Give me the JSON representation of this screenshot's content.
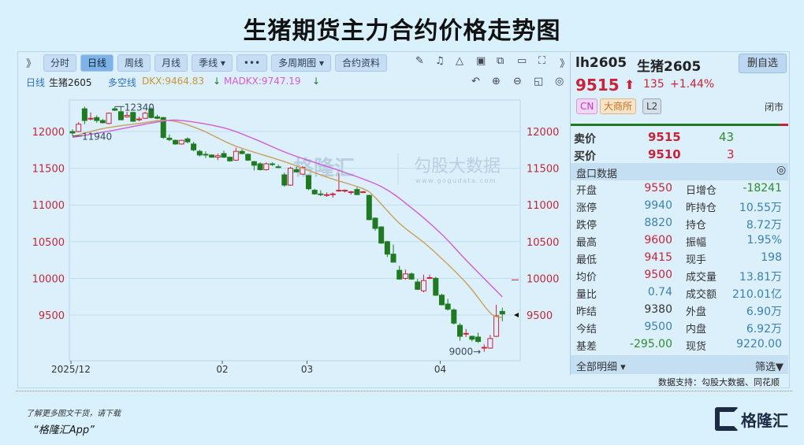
{
  "title": "生猪期货主力合约价格走势图",
  "toolbar": {
    "expand": "》",
    "buttons": [
      "分时",
      "日线",
      "周线",
      "月线",
      "季线 ▾",
      "•••",
      "多周期图 ▾",
      "合约资料"
    ],
    "active": "日线",
    "icons": [
      "pen-icon",
      "bell-icon",
      "alert-icon",
      "clipboard-icon",
      "copy-icon",
      "screen-icon",
      "fullscreen-icon",
      "more-icon"
    ],
    "expand_right": "》"
  },
  "legend": {
    "period": "日线",
    "name": "生猪2605",
    "indicator": "多空线",
    "dkx": "DKX:9464.83",
    "dkx_arrow": "↓",
    "madkx": "MADKX:9747.19",
    "madkx_arrow": "↓",
    "icons": [
      "undo-icon",
      "zoom-in-icon",
      "zoom-out-icon",
      "layout-icon",
      "settings-icon"
    ],
    "colors": {
      "dkx": "#c9a05a",
      "madkx": "#d35bd6"
    }
  },
  "quote": {
    "code": "lh2605",
    "name": "生猪2605",
    "remove_button": "删自选",
    "price": "9515",
    "arrow": "⬆",
    "change": "135",
    "change_pct": "+1.44%",
    "badges": [
      "CN",
      "大商所",
      "L2"
    ],
    "status": "闭市",
    "ask_label": "卖价",
    "ask": "9515",
    "ask_vol": "43",
    "bid_label": "买价",
    "bid": "9510",
    "bid_vol": "3"
  },
  "book": {
    "header": "盘口数据",
    "rows": [
      {
        "l1": "开盘",
        "v1": "9550",
        "c1": "red",
        "l2": "日增仓",
        "v2": "-18241",
        "c2": "grn"
      },
      {
        "l1": "涨停",
        "v1": "9940",
        "c1": "blu",
        "l2": "昨持仓",
        "v2": "10.55万",
        "c2": "blu"
      },
      {
        "l1": "跌停",
        "v1": "8820",
        "c1": "blu",
        "l2": "持仓",
        "v2": "8.72万",
        "c2": "blu"
      },
      {
        "l1": "最高",
        "v1": "9600",
        "c1": "red",
        "l2": "振幅",
        "v2": "1.95%",
        "c2": "blu"
      },
      {
        "l1": "最低",
        "v1": "9415",
        "c1": "red",
        "l2": "现手",
        "v2": "198",
        "c2": "blu"
      },
      {
        "l1": "均价",
        "v1": "9500",
        "c1": "red",
        "l2": "成交量",
        "v2": "13.81万",
        "c2": "blu"
      },
      {
        "l1": "量比",
        "v1": "0.74",
        "c1": "blu",
        "l2": "成交额",
        "v2": "210.01亿",
        "c2": "blu"
      },
      {
        "l1": "昨结",
        "v1": "9380",
        "c1": "dk",
        "l2": "外盘",
        "v2": "6.90万",
        "c2": "blu"
      },
      {
        "l1": "今结",
        "v1": "9500",
        "c1": "blu",
        "l2": "内盘",
        "v2": "6.92万",
        "c2": "blu"
      },
      {
        "l1": "基差",
        "v1": "-295.00",
        "c1": "grn",
        "l2": "现货",
        "v2": "9220.00",
        "c2": "blu"
      }
    ],
    "footer_left": "全部明细 ▾",
    "footer_right": "筛选▼",
    "source": "数据支持：勾股大数据、同花顺"
  },
  "watermark": {
    "brand": "格隆汇",
    "partner": "勾股大数据",
    "url": "www.gogudata.com"
  },
  "footer": {
    "line1": "了解更多图文干货，请下载",
    "line2": "“格隆汇App”",
    "logo": "格隆汇"
  },
  "colors": {
    "up": "#c9233a",
    "down": "#1f7a22",
    "bg": "#d8f1fd"
  },
  "chart_data": {
    "type": "candlestick",
    "yticks": [
      12000,
      11500,
      11000,
      10500,
      10000,
      9500
    ],
    "ylim": [
      8800,
      12450
    ],
    "xticks": [
      {
        "label": "2025/12",
        "index": 0
      },
      {
        "label": "02",
        "index": 25
      },
      {
        "label": "03",
        "index": 39
      },
      {
        "label": "04",
        "index": 61
      }
    ],
    "annotations": [
      {
        "text": "12340",
        "index": 7,
        "value": 12340
      },
      {
        "text": "11940",
        "index": 0,
        "value": 11940
      },
      {
        "text": "9000→",
        "index": 68,
        "value": 9000
      }
    ],
    "ohlc": [
      [
        12000,
        12030,
        11940,
        11980
      ],
      [
        12000,
        12130,
        11990,
        12100
      ],
      [
        12310,
        12340,
        12100,
        12150
      ],
      [
        12170,
        12260,
        12150,
        12180
      ],
      [
        12190,
        12220,
        12120,
        12150
      ],
      [
        12150,
        12170,
        12110,
        12120
      ],
      [
        12110,
        12260,
        12100,
        12250
      ],
      [
        12310,
        12340,
        12280,
        12290
      ],
      [
        12270,
        12340,
        12160,
        12160
      ],
      [
        12200,
        12270,
        12190,
        12220
      ],
      [
        12260,
        12270,
        12130,
        12140
      ],
      [
        12160,
        12200,
        12140,
        12170
      ],
      [
        12180,
        12270,
        12170,
        12250
      ],
      [
        12310,
        12330,
        12180,
        12190
      ],
      [
        12200,
        12230,
        12170,
        12180
      ],
      [
        12190,
        12200,
        11900,
        11920
      ],
      [
        11910,
        11960,
        11870,
        11890
      ],
      [
        11880,
        11890,
        11820,
        11830
      ],
      [
        11830,
        11890,
        11820,
        11880
      ],
      [
        11900,
        11920,
        11840,
        11860
      ],
      [
        11830,
        11860,
        11730,
        11750
      ],
      [
        11730,
        11750,
        11660,
        11680
      ],
      [
        11690,
        11730,
        11640,
        11680
      ],
      [
        11680,
        11690,
        11650,
        11650
      ],
      [
        11650,
        11700,
        11610,
        11670
      ],
      [
        11700,
        11740,
        11640,
        11650
      ],
      [
        11650,
        11660,
        11590,
        11600
      ],
      [
        11610,
        11780,
        11600,
        11730
      ],
      [
        11730,
        11760,
        11690,
        11700
      ],
      [
        11690,
        11700,
        11600,
        11610
      ],
      [
        11590,
        11600,
        11470,
        11540
      ],
      [
        11560,
        11580,
        11470,
        11480
      ],
      [
        11480,
        11580,
        11470,
        11560
      ],
      [
        11560,
        11580,
        11530,
        11550
      ],
      [
        11520,
        11550,
        11500,
        11510
      ],
      [
        11410,
        11440,
        11250,
        11270
      ],
      [
        11270,
        11520,
        11260,
        11500
      ],
      [
        11480,
        11520,
        11440,
        11450
      ],
      [
        11420,
        11530,
        11410,
        11510
      ],
      [
        11400,
        11410,
        11200,
        11220
      ],
      [
        11200,
        11220,
        11140,
        11150
      ],
      [
        11150,
        11200,
        11120,
        11140
      ],
      [
        11130,
        11170,
        11110,
        11140
      ],
      [
        11140,
        11170,
        11100,
        11150
      ],
      [
        11190,
        11430,
        11180,
        11200
      ],
      [
        11190,
        11210,
        11170,
        11200
      ],
      [
        11170,
        11190,
        11140,
        11180
      ],
      [
        11210,
        11240,
        11140,
        11140
      ],
      [
        11170,
        11190,
        11160,
        11180
      ],
      [
        11130,
        11140,
        10790,
        10800
      ],
      [
        10820,
        10830,
        10650,
        10680
      ],
      [
        10700,
        10710,
        10470,
        10480
      ],
      [
        10500,
        10510,
        10290,
        10330
      ],
      [
        10330,
        10460,
        10220,
        10220
      ],
      [
        10110,
        10170,
        9980,
        9990
      ],
      [
        10000,
        10120,
        9980,
        10060
      ],
      [
        10060,
        10080,
        9980,
        9990
      ],
      [
        9950,
        9990,
        9840,
        9850
      ],
      [
        9830,
        10050,
        9810,
        9970
      ],
      [
        10000,
        10050,
        9990,
        10010
      ],
      [
        10000,
        10020,
        9760,
        9770
      ],
      [
        9770,
        9790,
        9630,
        9640
      ],
      [
        9650,
        9720,
        9560,
        9580
      ],
      [
        9570,
        9590,
        9370,
        9390
      ],
      [
        9360,
        9390,
        9150,
        9210
      ],
      [
        9240,
        9310,
        9200,
        9250
      ],
      [
        9210,
        9220,
        9140,
        9170
      ],
      [
        9200,
        9260,
        9120,
        9140
      ],
      [
        9050,
        9100,
        9000,
        9060
      ],
      [
        9050,
        9230,
        9040,
        9180
      ],
      [
        9210,
        9640,
        9200,
        9490
      ],
      [
        9550,
        9600,
        9415,
        9515
      ]
    ],
    "series": [
      {
        "name": "DKX",
        "points": [
          [
            0,
            11930
          ],
          [
            5,
            12040
          ],
          [
            11,
            12110
          ],
          [
            16,
            12150
          ],
          [
            21,
            12030
          ],
          [
            27,
            11800
          ],
          [
            35,
            11590
          ],
          [
            42,
            11380
          ],
          [
            48,
            11220
          ],
          [
            50,
            11100
          ],
          [
            54,
            10750
          ],
          [
            59,
            10420
          ],
          [
            65,
            9940
          ],
          [
            69,
            9530
          ],
          [
            71,
            9464.83
          ]
        ]
      },
      {
        "name": "MADKX",
        "points": [
          [
            0,
            11920
          ],
          [
            7,
            12020
          ],
          [
            14,
            12130
          ],
          [
            18,
            12150
          ],
          [
            25,
            12050
          ],
          [
            30,
            11900
          ],
          [
            36,
            11690
          ],
          [
            44,
            11470
          ],
          [
            51,
            11250
          ],
          [
            56,
            10960
          ],
          [
            61,
            10600
          ],
          [
            65,
            10250
          ],
          [
            71,
            9747.19
          ]
        ]
      }
    ],
    "markers": [
      {
        "type": "limit-line",
        "value": 10000
      },
      {
        "type": "current-price-pointer",
        "value": 9500
      }
    ]
  }
}
